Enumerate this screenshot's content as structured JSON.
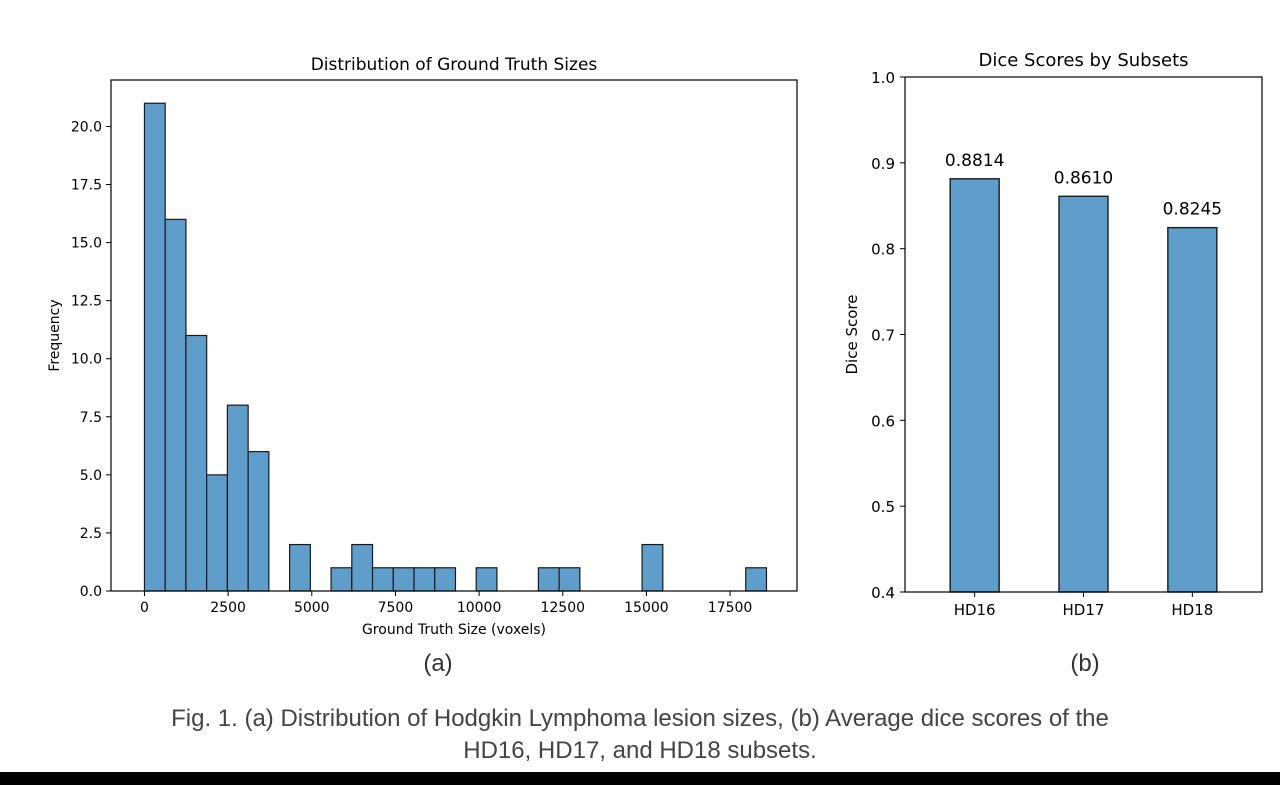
{
  "chart_data": [
    {
      "type": "bar",
      "title": "Distribution of Ground Truth Sizes",
      "xlabel": "Ground Truth Size (voxels)",
      "ylabel": "Frequency",
      "xlim": [
        -1000,
        19500
      ],
      "ylim": [
        0,
        22
      ],
      "xticks": [
        0,
        2500,
        5000,
        7500,
        10000,
        12500,
        15000,
        17500
      ],
      "xtick_labels": [
        "0",
        "2500",
        "5000",
        "7500",
        "10000",
        "12500",
        "15000",
        "17500"
      ],
      "yticks": [
        0,
        2.5,
        5,
        7.5,
        10,
        12.5,
        15,
        17.5,
        20
      ],
      "ytick_labels": [
        "0.0",
        "2.5",
        "5.0",
        "7.5",
        "10.0",
        "12.5",
        "15.0",
        "17.5",
        "20.0"
      ],
      "bin_edges": [
        0,
        619.6,
        1239.2,
        1858.8,
        2478.4,
        3098.0,
        3717.6,
        4337.2,
        4956.8,
        5576.4,
        6196.0,
        6815.6,
        7435.2,
        8054.8,
        8674.4,
        9294.0,
        9913.6,
        10533.2,
        11152.8,
        11772.4,
        12392.0,
        13011.6,
        13631.2,
        14250.8,
        14870.4,
        15490.0,
        16109.6,
        16729.2,
        17348.8,
        17968.4,
        18588.0
      ],
      "counts": [
        21,
        16,
        11,
        5,
        8,
        6,
        0,
        2,
        0,
        1,
        2,
        1,
        1,
        1,
        1,
        0,
        1,
        0,
        0,
        1,
        1,
        0,
        0,
        0,
        2,
        0,
        0,
        0,
        0,
        1
      ],
      "grid": false,
      "color": "#5f9ecb"
    },
    {
      "type": "bar",
      "title": "Dice Scores by Subsets",
      "xlabel": "",
      "ylabel": "Dice Score",
      "categories": [
        "HD16",
        "HD17",
        "HD18"
      ],
      "values": [
        0.8814,
        0.861,
        0.8245
      ],
      "value_labels": [
        "0.8814",
        "0.8610",
        "0.8245"
      ],
      "ylim": [
        0.4,
        1.0
      ],
      "yticks": [
        0.4,
        0.5,
        0.6,
        0.7,
        0.8,
        0.9,
        1.0
      ],
      "ytick_labels": [
        "0.4",
        "0.5",
        "0.6",
        "0.7",
        "0.8",
        "0.9",
        "1.0"
      ],
      "grid": false,
      "color": "#5f9ecb"
    }
  ],
  "panel_labels": [
    "(a)",
    "(b)"
  ],
  "caption": {
    "line1": "Fig. 1. (a) Distribution of Hodgkin Lymphoma lesion sizes, (b) Average dice scores of the",
    "line2": "HD16, HD17, and HD18 subsets."
  },
  "colors": {
    "bar_fill": "#5f9ecb",
    "bar_edge": "#1a1a1a",
    "axis": "#000000",
    "bottom_bar": "#000000"
  }
}
